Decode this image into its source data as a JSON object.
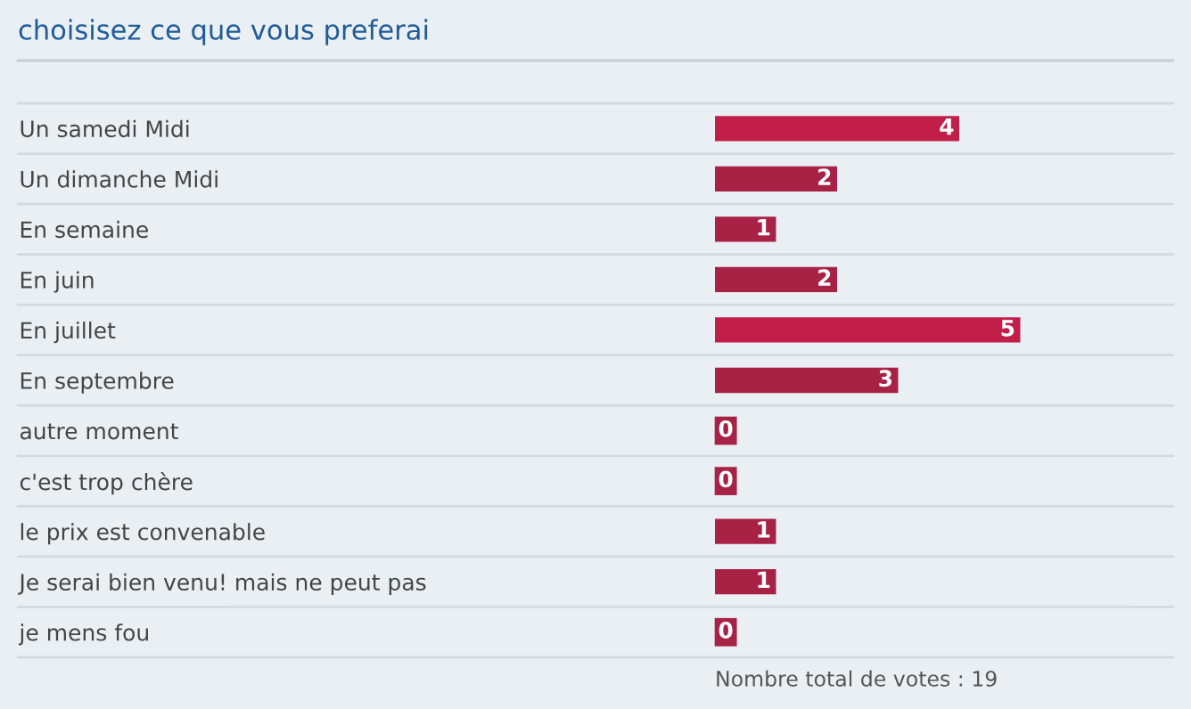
{
  "chart_data": {
    "type": "bar",
    "orientation": "horizontal",
    "title": "choisisez ce que vous preferai",
    "categories": [
      "Un samedi Midi",
      "Un dimanche Midi",
      "En semaine",
      "En juin",
      "En juillet",
      "En septembre",
      "autre moment",
      "c'est trop chère",
      "le prix est convenable",
      "Je serai bien venu! mais ne peut pas",
      "je mens fou"
    ],
    "values": [
      4,
      2,
      1,
      2,
      5,
      3,
      0,
      0,
      1,
      1,
      0
    ],
    "colors": [
      "#c21e4a",
      "#a82246",
      "#a82246",
      "#a82246",
      "#c21e4a",
      "#a82246",
      "#a82246",
      "#a82246",
      "#a82246",
      "#a82246",
      "#a82246"
    ],
    "data_labels": true,
    "annotations": [
      "Nombre total de votes : 19"
    ]
  }
}
